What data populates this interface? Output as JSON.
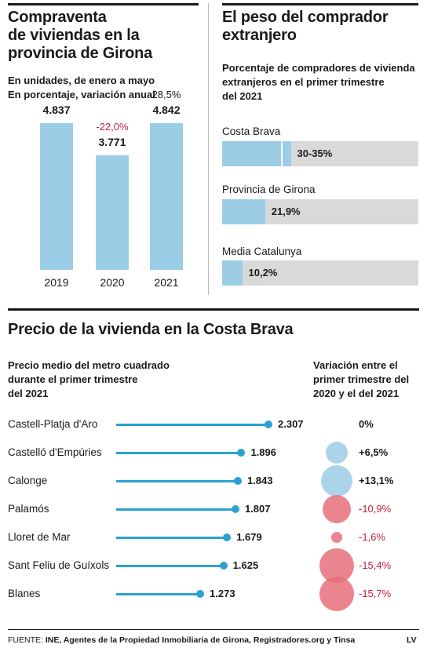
{
  "colors": {
    "bar": "#9ccde6",
    "track": "#d9d9d9",
    "line": "#2ba2cf",
    "positive": "#9ccde6",
    "negative": "#e6707c",
    "negative_text": "#c4213f"
  },
  "left": {
    "title": [
      "Compraventa",
      "de viviendas en la",
      "provincia de Girona"
    ],
    "notes": [
      "En unidades, de enero a mayo",
      "En porcentaje, variación anual"
    ]
  },
  "right": {
    "title": [
      "El peso del comprador",
      "extranjero"
    ],
    "subtitle": [
      "Porcentaje de compradores de vivienda",
      "extranjeros en el primer trimestre",
      "del 2021"
    ]
  },
  "bottom": {
    "title": "Precio de la vivienda en la Costa Brava",
    "price_header": [
      "Precio medio del metro cuadrado",
      "durante el primer trimestre",
      "del 2021"
    ],
    "var_header": [
      "Variación entre el",
      "primer trimestre del",
      "2020 y el del 2021"
    ]
  },
  "footer": {
    "source_prefix": "FUENTE:",
    "source": "INE, Agentes de la Propiedad Inmobiliaria de Girona, Registradores.org y Tinsa",
    "brand": "LV"
  },
  "chart_data": [
    {
      "type": "bar",
      "title": "Compraventa de viviendas en la provincia de Girona",
      "categories": [
        "2019",
        "2020",
        "2021"
      ],
      "values": [
        4837,
        3771,
        4842
      ],
      "value_labels": [
        "4.837",
        "3.771",
        "4.842"
      ],
      "change_labels": [
        "",
        "-22,0%",
        "28,5%"
      ],
      "change_values": [
        null,
        -22.0,
        28.5
      ],
      "ylim": [
        0,
        5500
      ]
    },
    {
      "type": "bar",
      "orientation": "horizontal",
      "title": "El peso del comprador extranjero",
      "categories": [
        "Costa Brava",
        "Provincia de Girona",
        "Media Catalunya"
      ],
      "values": [
        35,
        21.9,
        10.2
      ],
      "range_low": [
        30,
        null,
        null
      ],
      "value_labels": [
        "30-35%",
        "21,9%",
        "10,2%"
      ],
      "xlim": [
        0,
        100
      ]
    },
    {
      "type": "lollipop",
      "title": "Precio de la vivienda en la Costa Brava",
      "categories": [
        "Castell-Platja d'Aro",
        "Castelló d'Empúries",
        "Calonge",
        "Palamós",
        "Lloret de Mar",
        "Sant Feliu de Guíxols",
        "Blanes"
      ],
      "values": [
        2307,
        1896,
        1843,
        1807,
        1679,
        1625,
        1273
      ],
      "value_labels": [
        "2.307",
        "1.896",
        "1.843",
        "1.807",
        "1.679",
        "1.625",
        "1.273"
      ],
      "variation": [
        0,
        6.5,
        13.1,
        -10.9,
        -1.6,
        -15.4,
        -15.7
      ],
      "variation_labels": [
        "0%",
        "+6,5%",
        "+13,1%",
        "-10,9%",
        "-1,6%",
        "-15,4%",
        "-15,7%"
      ],
      "xlim": [
        0,
        2500
      ]
    }
  ]
}
